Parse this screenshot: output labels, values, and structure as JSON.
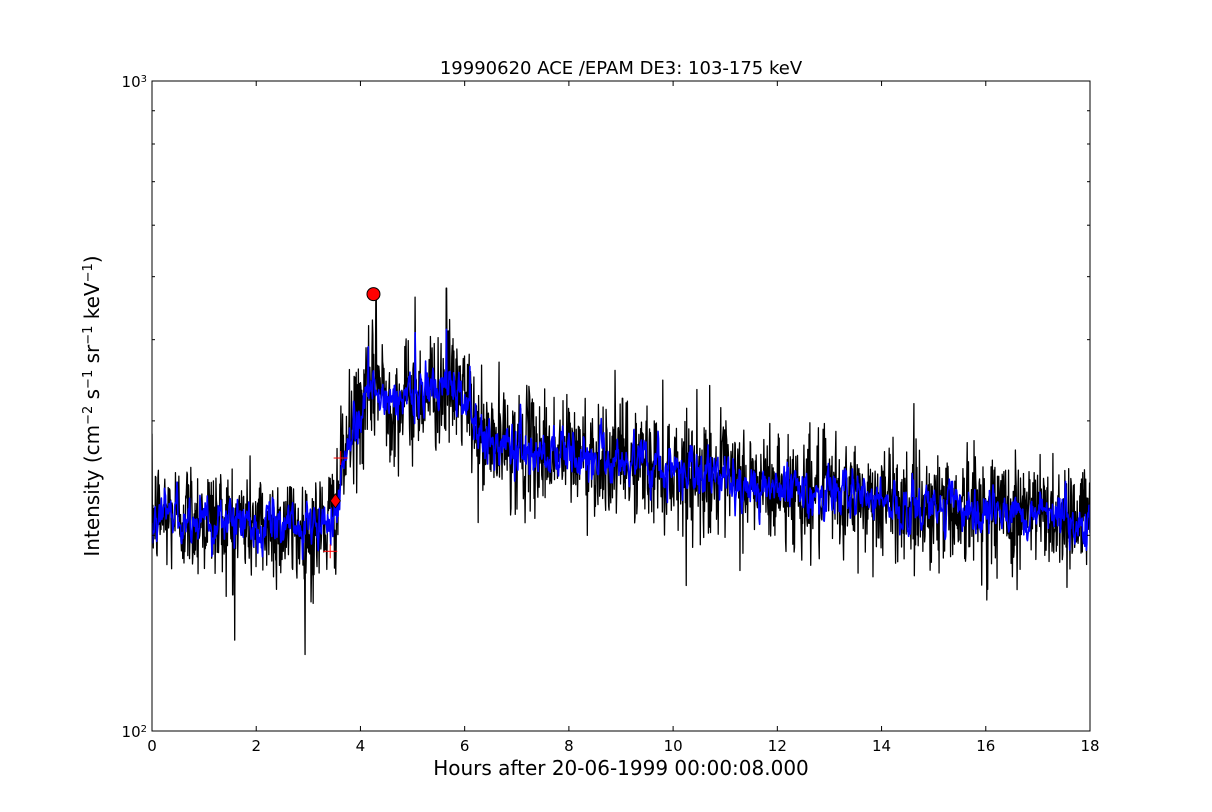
{
  "chart_data": {
    "type": "line",
    "title": "19990620 ACE /EPAM DE3: 103-175 keV",
    "xlabel": "Hours after 20-06-1999 00:00:08.000",
    "ylabel": {
      "prefix": "Intensity (cm",
      "sup1": "−2",
      "mid1": " s",
      "sup2": "−1",
      "mid2": " sr",
      "sup3": "−1",
      "mid3": " keV",
      "sup4": "−1",
      "suffix": ")"
    },
    "xlim": [
      0,
      18
    ],
    "ylim": [
      100,
      1000
    ],
    "yscale": "log",
    "x_ticks": [
      "0",
      "2",
      "4",
      "6",
      "8",
      "10",
      "12",
      "14",
      "16",
      "18"
    ],
    "x_tick_values": [
      0,
      2,
      4,
      6,
      8,
      10,
      12,
      14,
      16,
      18
    ],
    "y_ticks": [
      {
        "value": 100,
        "base": "10",
        "exp": "2"
      },
      {
        "value": 1000,
        "base": "10",
        "exp": "3"
      }
    ],
    "grid": false,
    "series": [
      {
        "kind": "raw",
        "color": "#000000",
        "profile": [
          [
            0,
            215
          ],
          [
            0.5,
            215
          ],
          [
            1,
            212
          ],
          [
            1.5,
            210
          ],
          [
            2,
            208
          ],
          [
            2.5,
            206
          ],
          [
            3,
            202
          ],
          [
            3.3,
            205
          ],
          [
            3.5,
            215
          ],
          [
            3.6,
            240
          ],
          [
            3.75,
            278
          ],
          [
            4.0,
            310
          ],
          [
            4.3,
            345
          ],
          [
            4.6,
            318
          ],
          [
            5.0,
            325
          ],
          [
            5.3,
            335
          ],
          [
            5.65,
            338
          ],
          [
            6.0,
            330
          ],
          [
            6.25,
            282
          ],
          [
            7,
            272
          ],
          [
            8,
            268
          ],
          [
            9,
            262
          ],
          [
            10,
            252
          ],
          [
            11,
            243
          ],
          [
            12,
            236
          ],
          [
            13,
            230
          ],
          [
            14,
            226
          ],
          [
            15,
            222
          ],
          [
            16,
            220
          ],
          [
            17,
            217
          ],
          [
            18,
            212
          ]
        ],
        "spikes": [
          [
            4.3,
            470
          ],
          [
            5.05,
            465
          ],
          [
            5.65,
            480
          ],
          [
            10.7,
            340
          ],
          [
            16.6,
            165
          ],
          [
            1.55,
            162
          ],
          [
            3.05,
            158
          ]
        ]
      },
      {
        "kind": "smoothed",
        "color": "#0000ff",
        "profile": [
          [
            0,
            215
          ],
          [
            0.5,
            215
          ],
          [
            1,
            212
          ],
          [
            1.5,
            210
          ],
          [
            2,
            208
          ],
          [
            2.5,
            206
          ],
          [
            3,
            202
          ],
          [
            3.3,
            205
          ],
          [
            3.5,
            215
          ],
          [
            3.6,
            240
          ],
          [
            3.75,
            278
          ],
          [
            4.0,
            310
          ],
          [
            4.3,
            345
          ],
          [
            4.6,
            318
          ],
          [
            5.0,
            325
          ],
          [
            5.3,
            335
          ],
          [
            5.65,
            338
          ],
          [
            6.0,
            330
          ],
          [
            6.25,
            282
          ],
          [
            7,
            272
          ],
          [
            8,
            268
          ],
          [
            9,
            262
          ],
          [
            10,
            252
          ],
          [
            11,
            243
          ],
          [
            12,
            236
          ],
          [
            13,
            230
          ],
          [
            14,
            226
          ],
          [
            15,
            222
          ],
          [
            16,
            220
          ],
          [
            17,
            217
          ],
          [
            18,
            212
          ]
        ],
        "spikes": [
          [
            4.15,
            390
          ],
          [
            5.05,
            410
          ],
          [
            5.65,
            415
          ]
        ]
      }
    ],
    "markers": [
      {
        "kind": "circle",
        "color": "#ff0000",
        "x": 4.25,
        "y": 470
      },
      {
        "kind": "diamond",
        "color": "#ff0000",
        "x": 3.52,
        "y": 226
      },
      {
        "kind": "plus",
        "color": "#ff0000",
        "x": 3.62,
        "y": 263
      },
      {
        "kind": "plus",
        "color": "#ff0000",
        "x": 3.42,
        "y": 189
      }
    ]
  }
}
